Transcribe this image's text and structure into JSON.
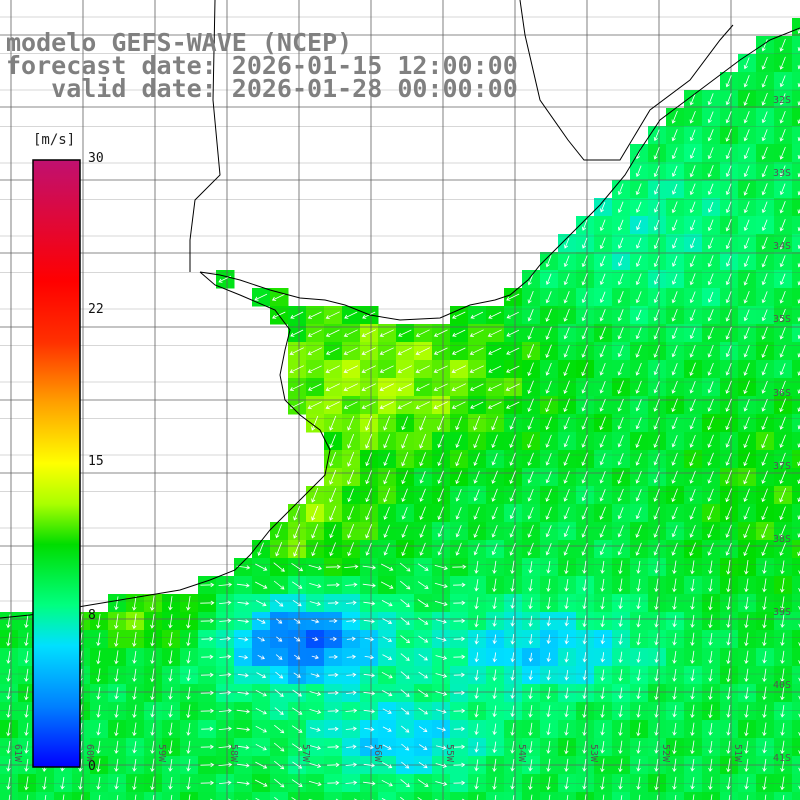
{
  "title": {
    "line1": "modelo GEFS-WAVE (NCEP)",
    "line2": "forecast date: 2026-01-15 12:00:00",
    "line3": "   valid date: 2026-01-28 00:00:00"
  },
  "colorbar": {
    "unit": "[m/s]",
    "ticks": [
      "30",
      "22",
      "15",
      "8",
      "0"
    ],
    "tick_values": [
      30,
      22,
      15,
      8,
      0
    ],
    "range": [
      0,
      30
    ],
    "colors": [
      "#0000ff",
      "#0080ff",
      "#00e0ff",
      "#00ff80",
      "#00dd00",
      "#aaff00",
      "#ffff00",
      "#ffa000",
      "#ff3000",
      "#ff0000",
      "#c01070"
    ]
  },
  "lat_labels": [
    "32S",
    "33S",
    "34S",
    "35S",
    "36S",
    "37S",
    "38S",
    "39S",
    "40S",
    "41S"
  ],
  "lon_labels": [
    "61W",
    "60W",
    "59W",
    "58W",
    "57W",
    "56W",
    "55W",
    "54W",
    "53W",
    "52W",
    "51W"
  ],
  "colors": {
    "land": "#ffffff",
    "coast": "#000000",
    "grid": "#606060",
    "arrow": "#ffffff",
    "title": "#808080"
  },
  "chart_data": {
    "type": "heatmap",
    "variable": "wind speed",
    "units": "m/s",
    "value_range": [
      0,
      30
    ],
    "typical_values": {
      "north_ocean": 9,
      "rio_de_la_plata": 12,
      "southwest_low": 2,
      "south_east": 7
    }
  }
}
